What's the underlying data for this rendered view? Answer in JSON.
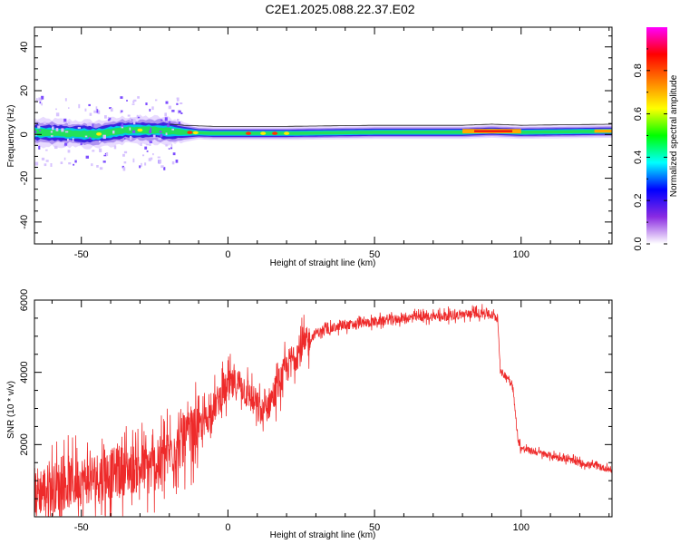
{
  "title": "C2E1.2025.088.22.37.E02",
  "chart_data": [
    {
      "type": "heatmap",
      "title": "",
      "xlabel": "Height of straight line (km)",
      "ylabel": "Frequency (Hz)",
      "xlim": [
        -66,
        131
      ],
      "ylim": [
        -50,
        49
      ],
      "xticks": [
        -50,
        0,
        50,
        100
      ],
      "yticks": [
        -40,
        -20,
        0,
        20,
        40
      ],
      "colorbar": {
        "label": "Normalized spectral amplitude",
        "range": [
          0,
          1
        ],
        "ticks": [
          0.0,
          0.2,
          0.4,
          0.6,
          0.8
        ],
        "colors": [
          "#ffffff",
          "#8a2be2",
          "#0000ff",
          "#00ffff",
          "#00ff00",
          "#ffff00",
          "#ff7f00",
          "#ff0000",
          "#ff00ff"
        ]
      },
      "frequency_center_profile": {
        "x": [
          -66,
          -55,
          -45,
          -35,
          -25,
          -15,
          -5,
          0,
          20,
          50,
          80,
          90,
          100,
          131
        ],
        "y": [
          1,
          0.5,
          0,
          2,
          2,
          1,
          0.5,
          0.5,
          0.5,
          1,
          1,
          1.5,
          1,
          1.5
        ]
      },
      "band_half_width_profile": {
        "x": [
          -66,
          -20,
          -10,
          131
        ],
        "y": [
          6,
          6,
          3,
          3
        ]
      }
    },
    {
      "type": "line",
      "title": "",
      "xlabel": "Height of straight line (km)",
      "ylabel": "SNR (10 * v/v)",
      "xlim": [
        -66,
        131
      ],
      "ylim": [
        0,
        6000
      ],
      "xticks": [
        -50,
        0,
        50,
        100
      ],
      "yticks": [
        2000,
        4000,
        6000
      ],
      "color": "#ee2a2a",
      "series": [
        {
          "x": [
            -66,
            -55,
            -45,
            -35,
            -25,
            -18,
            -12,
            -8,
            -5,
            -2,
            0,
            4,
            7,
            12,
            18,
            22,
            27,
            30,
            40,
            50,
            60,
            70,
            80,
            88,
            92,
            93,
            95,
            97,
            99,
            100,
            102,
            110,
            120,
            131
          ],
          "y": [
            700,
            900,
            1100,
            1300,
            1400,
            1900,
            2300,
            2600,
            3000,
            3400,
            3600,
            3700,
            3400,
            2800,
            3800,
            4400,
            4800,
            5100,
            5300,
            5400,
            5500,
            5550,
            5600,
            5650,
            5500,
            4000,
            3900,
            3700,
            2100,
            1900,
            1850,
            1700,
            1500,
            1300
          ]
        }
      ]
    }
  ]
}
